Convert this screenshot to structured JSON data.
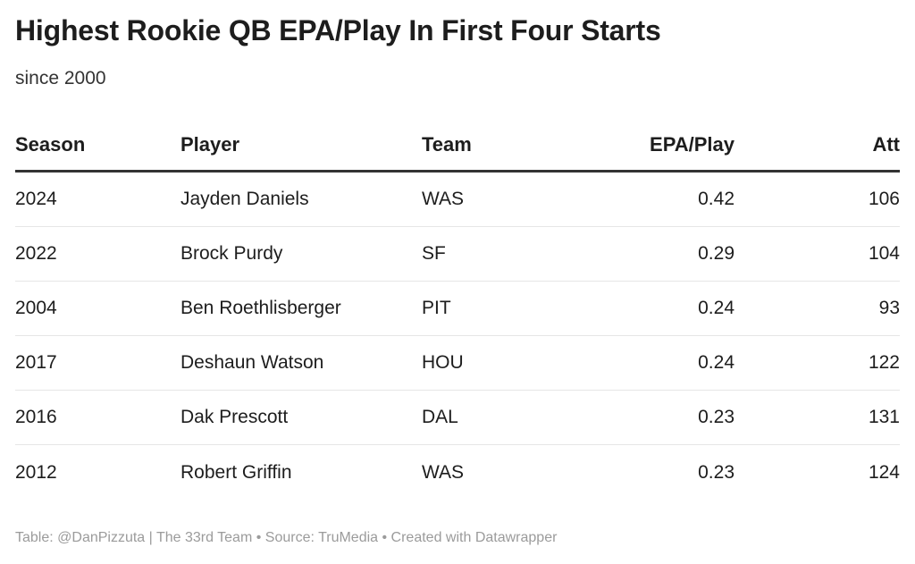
{
  "chart_data": {
    "type": "table",
    "title": "Highest Rookie QB EPA/Play In First Four Starts",
    "subtitle": "since 2000",
    "columns": [
      "Season",
      "Player",
      "Team",
      "EPA/Play",
      "Att"
    ],
    "rows": [
      {
        "season": "2024",
        "player": "Jayden Daniels",
        "team": "WAS",
        "epa": "0.42",
        "att": "106"
      },
      {
        "season": "2022",
        "player": "Brock Purdy",
        "team": "SF",
        "epa": "0.29",
        "att": "104"
      },
      {
        "season": "2004",
        "player": "Ben Roethlisberger",
        "team": "PIT",
        "epa": "0.24",
        "att": "93"
      },
      {
        "season": "2017",
        "player": "Deshaun Watson",
        "team": "HOU",
        "epa": "0.24",
        "att": "122"
      },
      {
        "season": "2016",
        "player": "Dak Prescott",
        "team": "DAL",
        "epa": "0.23",
        "att": "131"
      },
      {
        "season": "2012",
        "player": "Robert Griffin",
        "team": "WAS",
        "epa": "0.23",
        "att": "124"
      }
    ],
    "footer": "Table: @DanPizzuta | The 33rd Team • Source: TruMedia • Created with Datawrapper"
  }
}
